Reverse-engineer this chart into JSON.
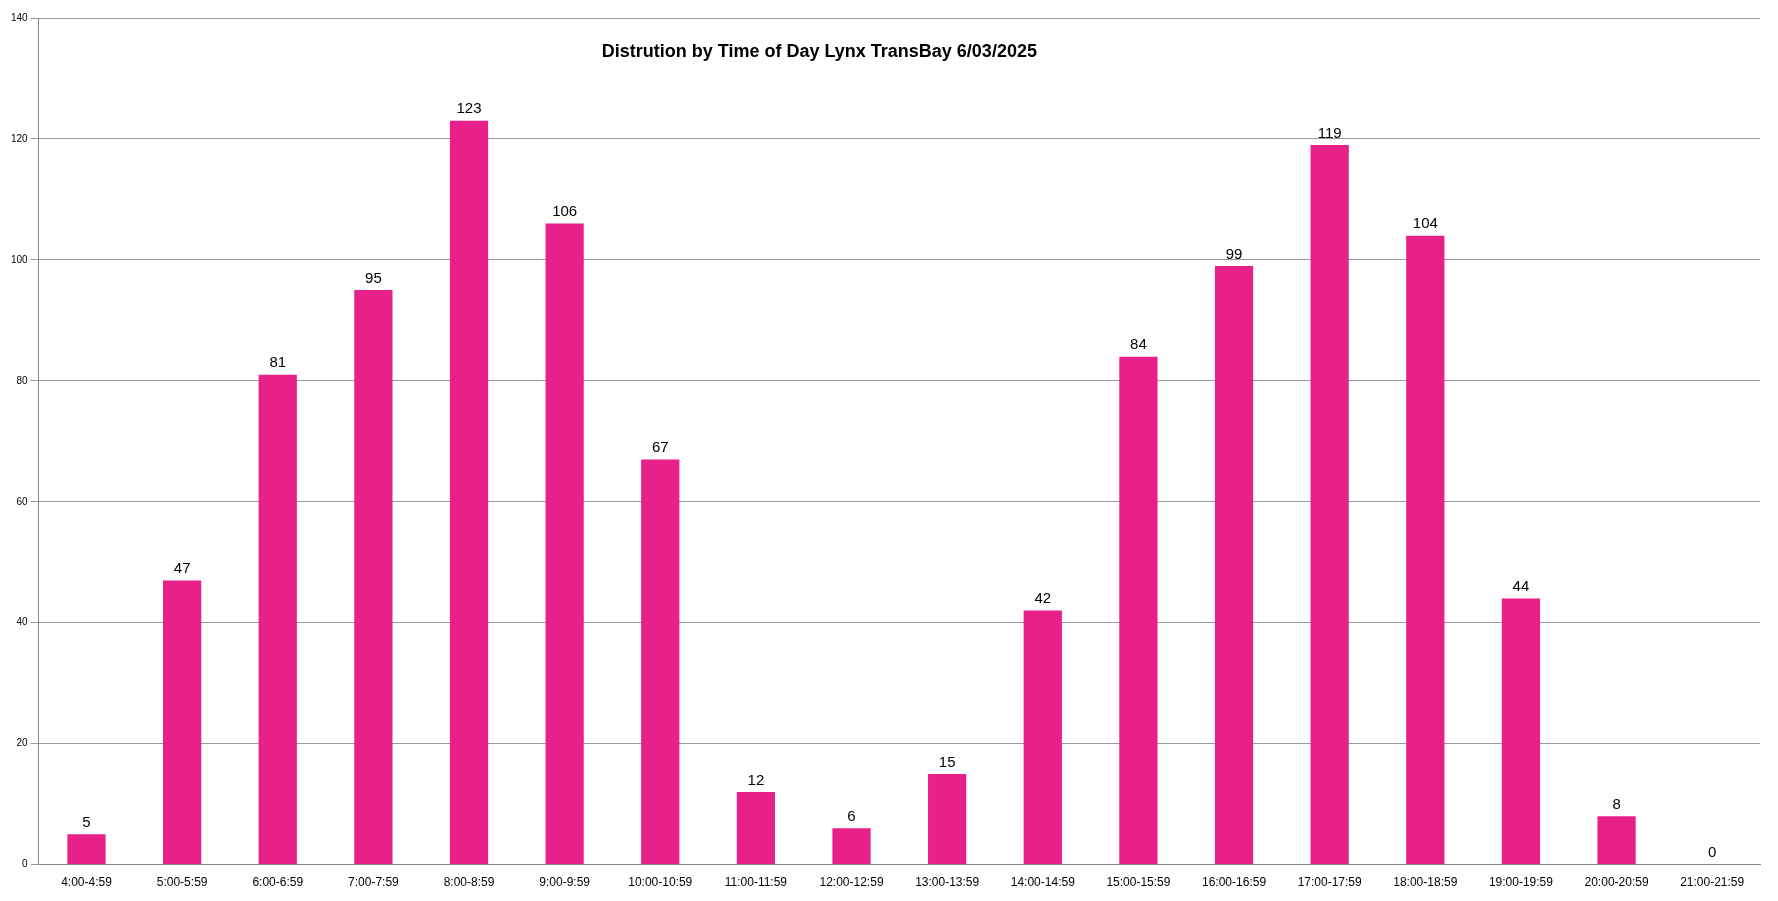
{
  "chart_data": {
    "type": "bar",
    "title": "Distrution by Time of Day Lynx TransBay 6/03/2025",
    "categories": [
      "4:00-4:59",
      "5:00-5:59",
      "6:00-6:59",
      "7:00-7:59",
      "8:00-8:59",
      "9:00-9:59",
      "10:00-10:59",
      "11:00-11:59",
      "12:00-12:59",
      "13:00-13:59",
      "14:00-14:59",
      "15:00-15:59",
      "16:00-16:59",
      "17:00-17:59",
      "18:00-18:59",
      "19:00-19:59",
      "20:00-20:59",
      "21:00-21:59"
    ],
    "values": [
      5,
      47,
      81,
      95,
      123,
      106,
      67,
      12,
      6,
      15,
      42,
      84,
      99,
      119,
      104,
      44,
      8,
      0
    ],
    "color": "#e8218a",
    "ylim": [
      0,
      140
    ],
    "yticks": [
      0,
      20,
      40,
      60,
      80,
      100,
      120,
      140
    ],
    "grid": "y",
    "data_labels": true,
    "legend": false
  }
}
